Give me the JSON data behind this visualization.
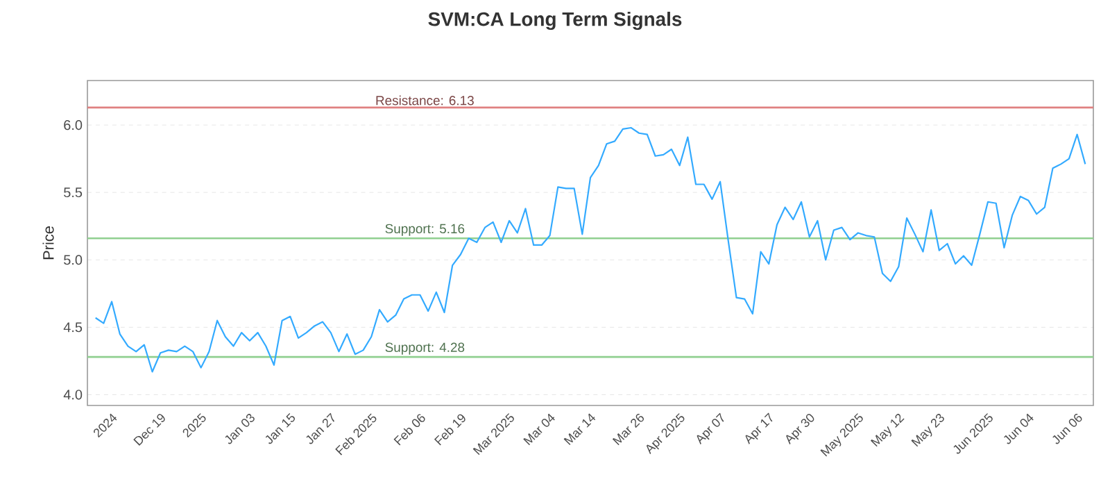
{
  "chart_data": {
    "type": "line",
    "title": "SVM:CA Long Term Signals",
    "ylabel": "Price",
    "categories": [
      null,
      null,
      "2024",
      null,
      null,
      null,
      null,
      null,
      "Dec 19",
      null,
      null,
      null,
      null,
      "2025",
      null,
      null,
      null,
      null,
      null,
      "Jan 03",
      null,
      null,
      null,
      null,
      "Jan 15",
      null,
      null,
      null,
      null,
      "Jan 27",
      null,
      null,
      null,
      null,
      "Feb 2025",
      null,
      null,
      null,
      null,
      null,
      "Feb 06",
      null,
      null,
      null,
      null,
      "Feb 19",
      null,
      null,
      null,
      null,
      null,
      "Mar 2025",
      null,
      null,
      null,
      null,
      "Mar 04",
      null,
      null,
      null,
      null,
      "Mar 14",
      null,
      null,
      null,
      null,
      null,
      "Mar 26",
      null,
      null,
      null,
      null,
      "Apr 2025",
      null,
      null,
      null,
      null,
      "Apr 07",
      null,
      null,
      null,
      null,
      null,
      "Apr 17",
      null,
      null,
      null,
      null,
      "Apr 30",
      null,
      null,
      null,
      null,
      null,
      "May 2025",
      null,
      null,
      null,
      null,
      "May 12",
      null,
      null,
      null,
      null,
      "May 23",
      null,
      null,
      null,
      null,
      null,
      "Jun 2025",
      null,
      null,
      null,
      null,
      "Jun 04",
      null,
      null,
      null,
      null,
      null,
      "Jun 06",
      null
    ],
    "series": [
      {
        "color": "#33aaff",
        "values": [
          4.57,
          4.53,
          4.69,
          4.45,
          4.36,
          4.32,
          4.37,
          4.17,
          4.31,
          4.33,
          4.32,
          4.36,
          4.32,
          4.2,
          4.32,
          4.55,
          4.43,
          4.36,
          4.46,
          4.4,
          4.46,
          4.36,
          4.22,
          4.55,
          4.58,
          4.42,
          4.46,
          4.51,
          4.54,
          4.46,
          4.32,
          4.45,
          4.3,
          4.33,
          4.43,
          4.63,
          4.54,
          4.59,
          4.71,
          4.74,
          4.74,
          4.62,
          4.76,
          4.61,
          4.96,
          5.04,
          5.16,
          5.13,
          5.24,
          5.28,
          5.13,
          5.29,
          5.2,
          5.38,
          5.11,
          5.11,
          5.18,
          5.54,
          5.53,
          5.53,
          5.19,
          5.61,
          5.7,
          5.86,
          5.88,
          5.97,
          5.98,
          5.94,
          5.93,
          5.77,
          5.78,
          5.82,
          5.7,
          5.91,
          5.56,
          5.56,
          5.45,
          5.58,
          5.14,
          4.72,
          4.71,
          4.6,
          5.06,
          4.97,
          5.26,
          5.39,
          5.3,
          5.43,
          5.17,
          5.29,
          5.0,
          5.22,
          5.24,
          5.15,
          5.2,
          5.18,
          5.17,
          4.9,
          4.84,
          4.95,
          5.31,
          5.19,
          5.06,
          5.37,
          5.07,
          5.12,
          4.97,
          5.03,
          4.96,
          5.19,
          5.43,
          5.42,
          5.09,
          5.33,
          5.47,
          5.44,
          5.34,
          5.39,
          5.68,
          5.71,
          5.75,
          5.93,
          5.71
        ]
      }
    ],
    "ylim": [
      3.92,
      6.33
    ],
    "yticks": [
      {
        "value": 4,
        "label": "4.0"
      },
      {
        "value": 4.5,
        "label": "4.5"
      },
      {
        "value": 5,
        "label": "5.0"
      },
      {
        "value": 5.5,
        "label": "5.5"
      },
      {
        "value": 6,
        "label": "6.0"
      }
    ],
    "grid": "y",
    "ref_lines": [
      {
        "axis": "y",
        "value": 6.13,
        "label": "Resistance: 6.13",
        "color": "#e08080"
      },
      {
        "axis": "y",
        "value": 5.16,
        "label": "Support: 5.16",
        "color": "#90d090"
      },
      {
        "axis": "y",
        "value": 4.28,
        "label": "Support: 4.28",
        "color": "#90d090"
      }
    ]
  }
}
